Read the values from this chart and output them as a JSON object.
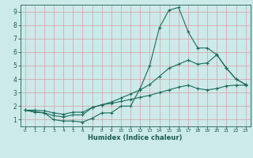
{
  "xlabel": "Humidex (Indice chaleur)",
  "bg_color": "#cceaea",
  "grid_color": "#d4a0a0",
  "line_color": "#1a6b5a",
  "tick_color": "#1a5c50",
  "xlim": [
    -0.5,
    23.5
  ],
  "ylim": [
    0.5,
    9.5
  ],
  "xticks": [
    0,
    1,
    2,
    3,
    4,
    5,
    6,
    7,
    8,
    9,
    10,
    11,
    12,
    13,
    14,
    15,
    16,
    17,
    18,
    19,
    20,
    21,
    22,
    23
  ],
  "yticks": [
    1,
    2,
    3,
    4,
    5,
    6,
    7,
    8,
    9
  ],
  "line1_x": [
    0,
    1,
    2,
    3,
    4,
    5,
    6,
    7,
    8,
    9,
    10,
    11,
    12,
    13,
    14,
    15,
    16,
    17,
    18,
    19,
    20,
    21,
    22,
    23
  ],
  "line1_y": [
    1.7,
    1.55,
    1.5,
    1.0,
    0.9,
    0.9,
    0.82,
    1.1,
    1.5,
    1.5,
    2.0,
    2.0,
    3.3,
    5.0,
    7.8,
    9.1,
    9.3,
    7.5,
    6.3,
    6.3,
    5.8,
    4.8,
    4.0,
    3.6
  ],
  "line2_x": [
    0,
    1,
    2,
    3,
    4,
    5,
    6,
    7,
    8,
    9,
    10,
    11,
    12,
    13,
    14,
    15,
    16,
    17,
    18,
    19,
    20,
    21,
    22,
    23
  ],
  "line2_y": [
    1.7,
    1.6,
    1.5,
    1.3,
    1.2,
    1.35,
    1.35,
    1.9,
    2.1,
    2.3,
    2.6,
    2.9,
    3.2,
    3.6,
    4.2,
    4.8,
    5.1,
    5.4,
    5.1,
    5.2,
    5.8,
    4.8,
    4.0,
    3.6
  ],
  "line3_x": [
    0,
    1,
    2,
    3,
    4,
    5,
    6,
    7,
    8,
    9,
    10,
    11,
    12,
    13,
    14,
    15,
    16,
    17,
    18,
    19,
    20,
    21,
    22,
    23
  ],
  "line3_y": [
    1.7,
    1.7,
    1.65,
    1.5,
    1.4,
    1.55,
    1.55,
    1.9,
    2.1,
    2.2,
    2.35,
    2.5,
    2.65,
    2.8,
    3.0,
    3.2,
    3.4,
    3.55,
    3.3,
    3.2,
    3.3,
    3.5,
    3.55,
    3.55
  ]
}
